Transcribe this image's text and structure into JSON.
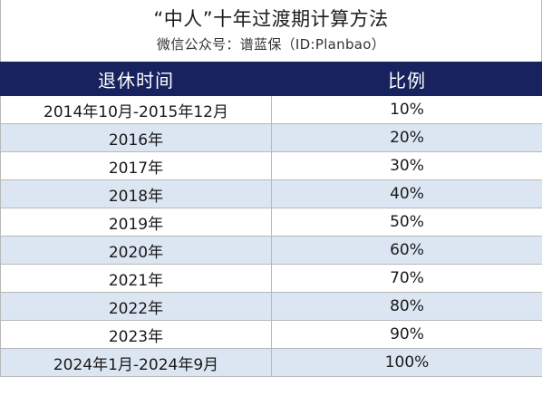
{
  "header": {
    "title": "“中人”十年过渡期计算方法",
    "subtitle": "微信公众号：谱蓝保（ID:Planbao）"
  },
  "table": {
    "columns": [
      "退休时间",
      "比例"
    ],
    "rows": [
      [
        "2014年10月-2015年12月",
        "10%"
      ],
      [
        "2016年",
        "20%"
      ],
      [
        "2017年",
        "30%"
      ],
      [
        "2018年",
        "40%"
      ],
      [
        "2019年",
        "50%"
      ],
      [
        "2020年",
        "60%"
      ],
      [
        "2021年",
        "70%"
      ],
      [
        "2022年",
        "80%"
      ],
      [
        "2023年",
        "90%"
      ],
      [
        "2024年1月-2024年9月",
        "100%"
      ]
    ]
  },
  "colors": {
    "header_bg": "#17225e",
    "alt_row_bg": "#dce6f2",
    "row_bg": "#ffffff"
  }
}
